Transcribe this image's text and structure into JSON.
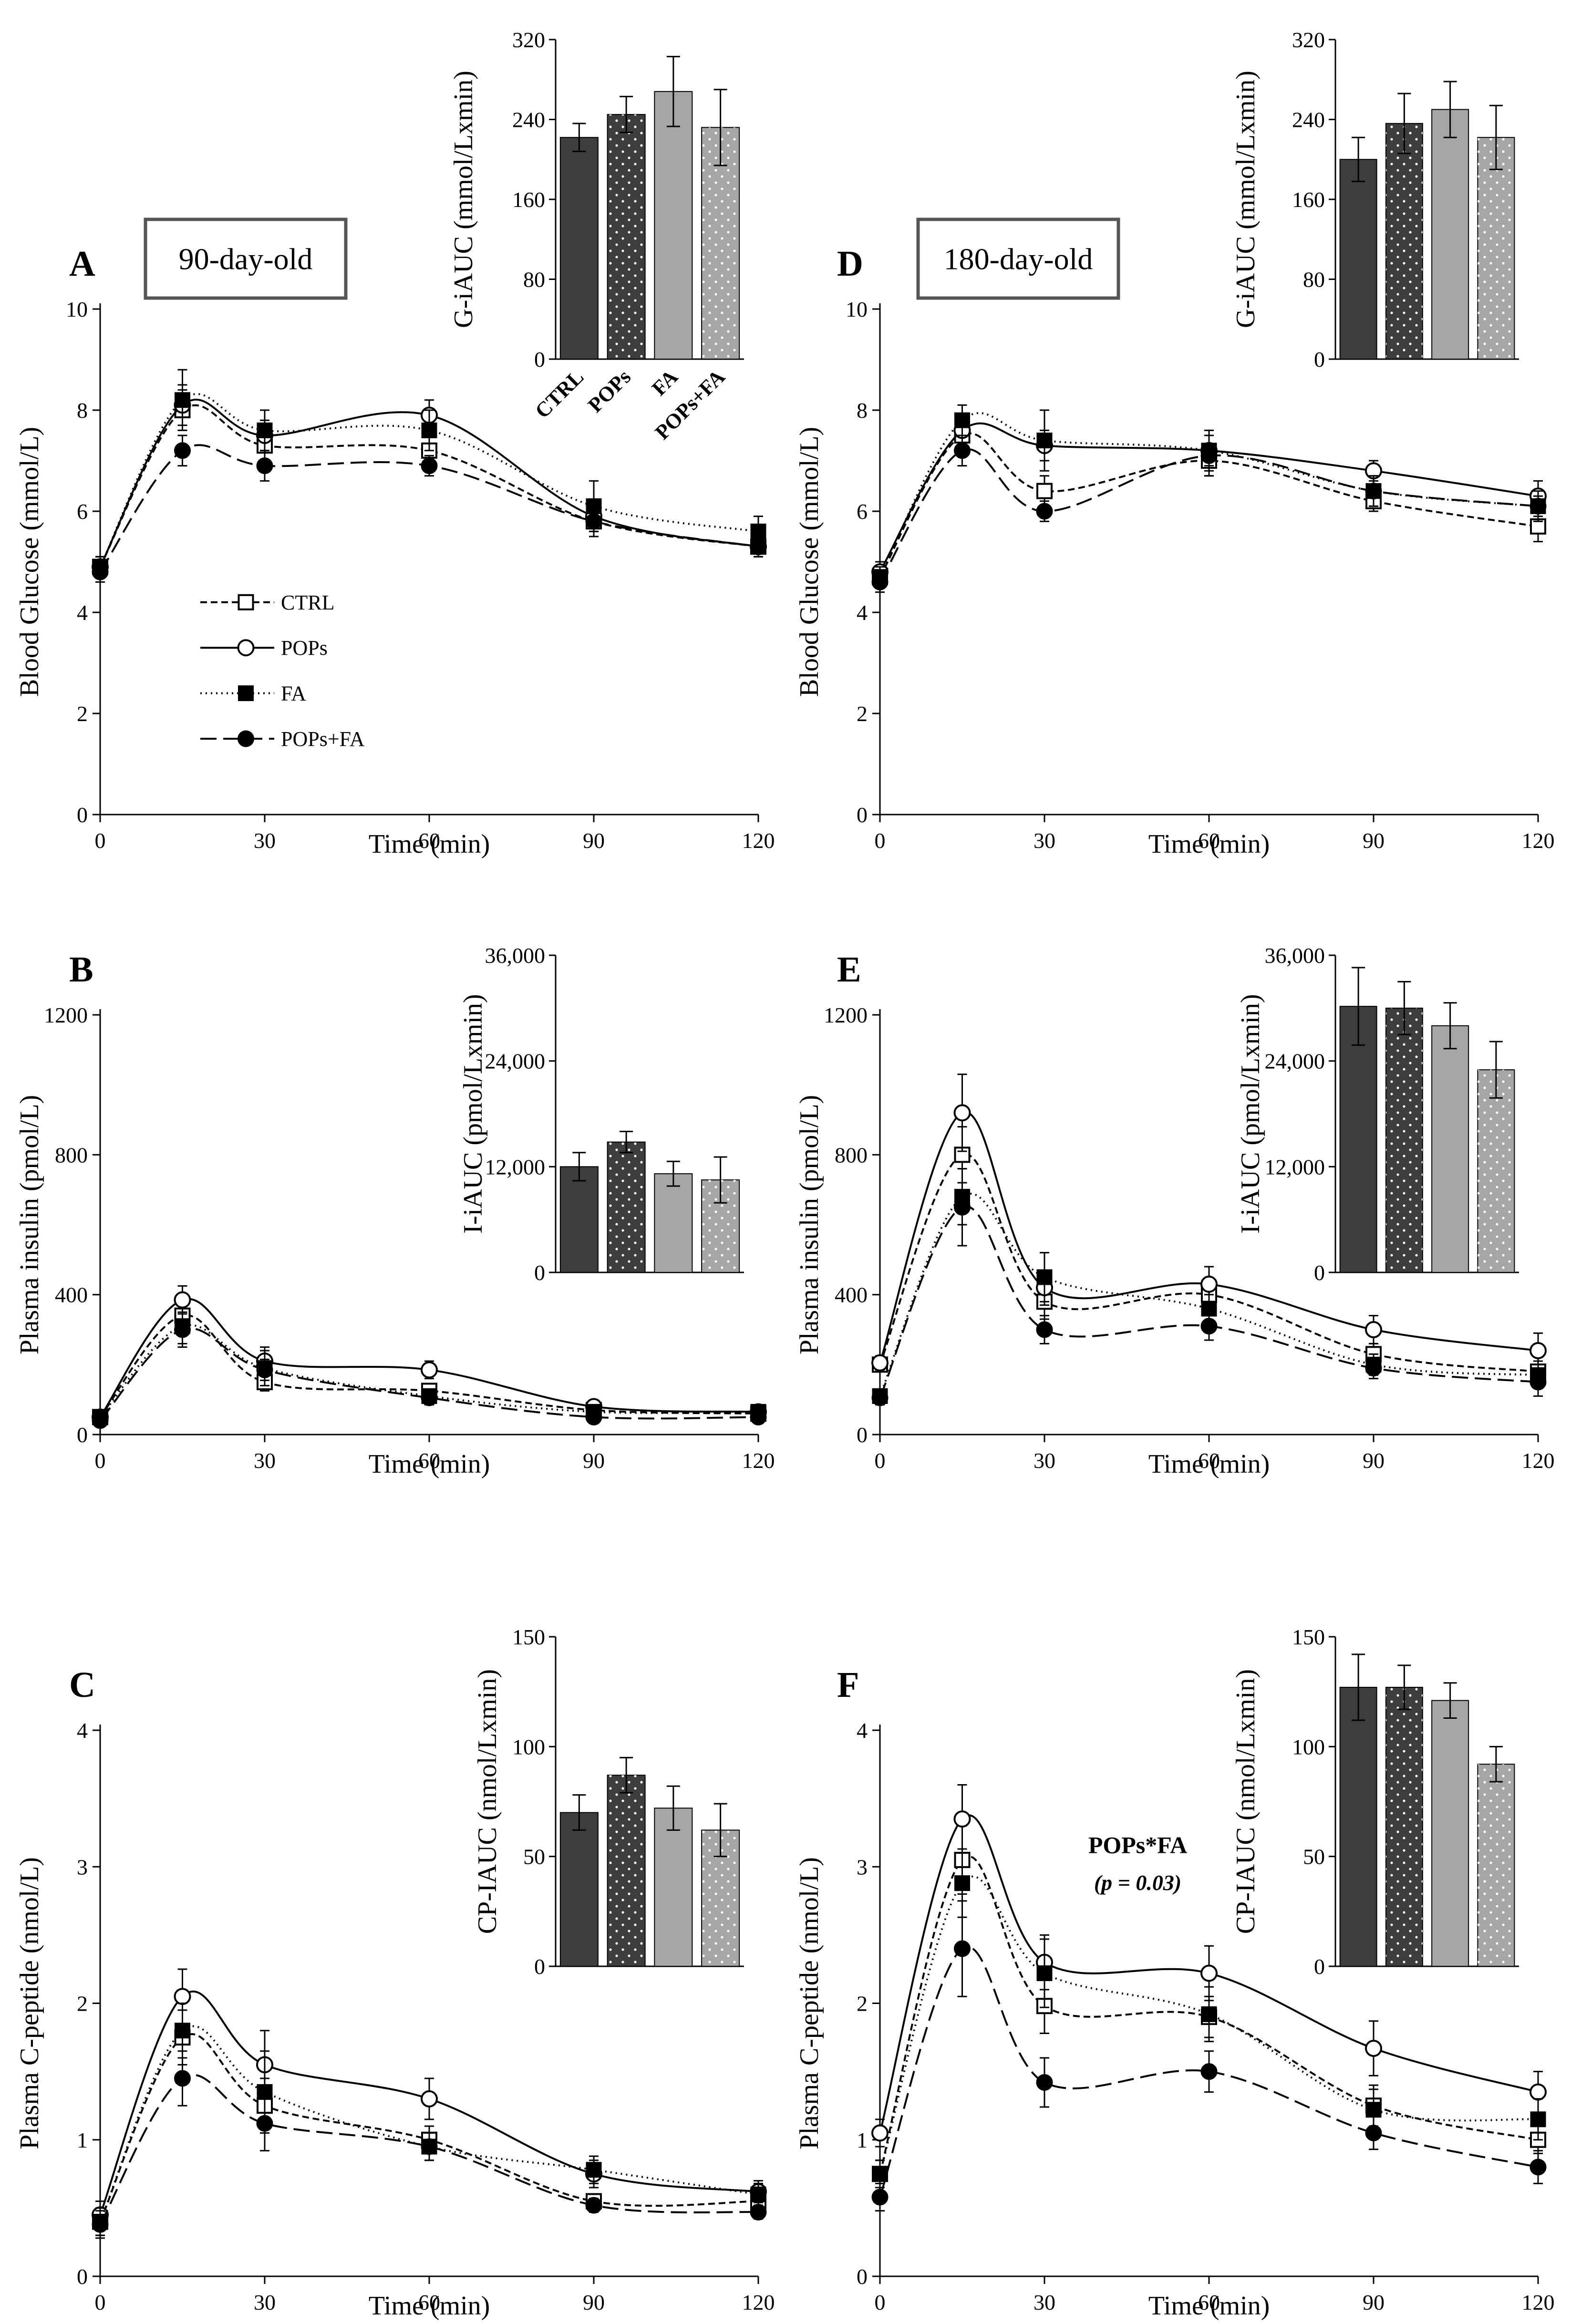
{
  "figure": {
    "age_labels": [
      "90-day-old",
      "180-day-old"
    ],
    "legend": [
      {
        "name": "CTRL",
        "style": "short-dash",
        "marker": "open-square"
      },
      {
        "name": "POPs",
        "style": "solid",
        "marker": "open-circle"
      },
      {
        "name": "FA",
        "style": "dotted",
        "marker": "filled-square"
      },
      {
        "name": "POPs+FA",
        "style": "long-dash",
        "marker": "filled-circle"
      }
    ],
    "bar_categories": [
      "CTRL",
      "POPs",
      "FA",
      "POPs+FA"
    ],
    "bar_colors": [
      "#3d3d3d",
      "#3d3d3d",
      "#a6a6a6",
      "#a6a6a6"
    ],
    "bar_dotted": [
      false,
      true,
      false,
      true
    ]
  },
  "chart_data": [
    {
      "panel": "A",
      "type": "line",
      "age": "90-day-old",
      "legend_shown": true,
      "xlabel": "Time (min)",
      "ylabel": "Blood Glucose (mmol/L)",
      "x": [
        0,
        15,
        30,
        60,
        90,
        120
      ],
      "xlim": [
        0,
        120
      ],
      "xticks": [
        0,
        30,
        60,
        90,
        120
      ],
      "ylim": [
        0,
        10
      ],
      "yticks": [
        0,
        2,
        4,
        6,
        8,
        10
      ],
      "ytick_labels": [
        "0",
        "2",
        "4",
        "6",
        "8",
        "10"
      ],
      "series": [
        {
          "name": "CTRL",
          "values": [
            4.9,
            8.0,
            7.3,
            7.2,
            5.8,
            5.3
          ],
          "errors": [
            0.2,
            0.4,
            0.3,
            0.3,
            0.3,
            0.2
          ]
        },
        {
          "name": "POPs",
          "values": [
            4.9,
            8.1,
            7.5,
            7.9,
            5.9,
            5.3
          ],
          "errors": [
            0.2,
            0.4,
            0.3,
            0.3,
            0.3,
            0.2
          ]
        },
        {
          "name": "FA",
          "values": [
            4.9,
            8.2,
            7.6,
            7.6,
            6.1,
            5.6
          ],
          "errors": [
            0.2,
            0.6,
            0.4,
            0.4,
            0.5,
            0.3
          ]
        },
        {
          "name": "POPs+FA",
          "values": [
            4.8,
            7.2,
            6.9,
            6.9,
            5.8,
            5.3
          ],
          "errors": [
            0.2,
            0.3,
            0.3,
            0.2,
            0.2,
            0.2
          ]
        }
      ],
      "inset": {
        "type": "bar",
        "ylabel": "G-iAUC (mmol/Lxmin)",
        "ylim": [
          0,
          320
        ],
        "yticks": [
          0,
          80,
          160,
          240,
          320
        ],
        "ytick_labels": [
          "0",
          "80",
          "160",
          "240",
          "320"
        ],
        "values": [
          222,
          245,
          268,
          232
        ],
        "errors": [
          14,
          18,
          35,
          38
        ],
        "show_categories": true
      }
    },
    {
      "panel": "B",
      "type": "line",
      "age": "90-day-old",
      "legend_shown": false,
      "xlabel": "Time (min)",
      "ylabel": "Plasma insulin (pmol/L)",
      "x": [
        0,
        15,
        30,
        60,
        90,
        120
      ],
      "xlim": [
        0,
        120
      ],
      "xticks": [
        0,
        30,
        60,
        90,
        120
      ],
      "ylim": [
        0,
        1200
      ],
      "yticks": [
        0,
        400,
        800,
        1200
      ],
      "ytick_labels": [
        "0",
        "400",
        "800",
        "1200"
      ],
      "series": [
        {
          "name": "CTRL",
          "values": [
            50,
            340,
            150,
            125,
            70,
            60
          ],
          "errors": [
            15,
            50,
            25,
            20,
            15,
            10
          ]
        },
        {
          "name": "POPs",
          "values": [
            50,
            385,
            210,
            185,
            80,
            65
          ],
          "errors": [
            15,
            40,
            40,
            25,
            15,
            15
          ]
        },
        {
          "name": "FA",
          "values": [
            50,
            310,
            190,
            110,
            65,
            65
          ],
          "errors": [
            15,
            50,
            50,
            20,
            15,
            15
          ]
        },
        {
          "name": "POPs+FA",
          "values": [
            40,
            300,
            185,
            105,
            50,
            50
          ],
          "errors": [
            15,
            50,
            30,
            20,
            10,
            10
          ]
        }
      ],
      "inset": {
        "type": "bar",
        "ylabel": "I-iAUC (pmol/Lxmin)",
        "ylim": [
          0,
          36000
        ],
        "yticks": [
          0,
          12000,
          24000,
          36000
        ],
        "ytick_labels": [
          "0",
          "12,000",
          "24,000",
          "36,000"
        ],
        "values": [
          12000,
          14800,
          11200,
          10500
        ],
        "errors": [
          1600,
          1200,
          1400,
          2600
        ],
        "show_categories": false
      }
    },
    {
      "panel": "C",
      "type": "line",
      "age": "90-day-old",
      "legend_shown": false,
      "xlabel": "Time (min)",
      "ylabel": "Plasma C-peptide (nmol/L)",
      "x": [
        0,
        15,
        30,
        60,
        90,
        120
      ],
      "xlim": [
        0,
        120
      ],
      "xticks": [
        0,
        30,
        60,
        90,
        120
      ],
      "ylim": [
        0,
        4
      ],
      "yticks": [
        0,
        1,
        2,
        3,
        4
      ],
      "ytick_labels": [
        "0",
        "1",
        "2",
        "3",
        "4"
      ],
      "series": [
        {
          "name": "CTRL",
          "values": [
            0.4,
            1.75,
            1.25,
            1.0,
            0.55,
            0.55
          ],
          "errors": [
            0.1,
            0.2,
            0.2,
            0.1,
            0.05,
            0.05
          ]
        },
        {
          "name": "POPs",
          "values": [
            0.45,
            2.05,
            1.55,
            1.3,
            0.75,
            0.62
          ],
          "errors": [
            0.1,
            0.2,
            0.25,
            0.15,
            0.1,
            0.08
          ]
        },
        {
          "name": "FA",
          "values": [
            0.4,
            1.8,
            1.35,
            0.95,
            0.78,
            0.6
          ],
          "errors": [
            0.1,
            0.2,
            0.3,
            0.1,
            0.1,
            0.08
          ]
        },
        {
          "name": "POPs+FA",
          "values": [
            0.38,
            1.45,
            1.12,
            0.95,
            0.52,
            0.47
          ],
          "errors": [
            0.1,
            0.2,
            0.2,
            0.1,
            0.05,
            0.05
          ]
        }
      ],
      "inset": {
        "type": "bar",
        "ylabel": "CP-IAUC (nmol/Lxmin)",
        "ylim": [
          0,
          150
        ],
        "yticks": [
          0,
          50,
          100,
          150
        ],
        "ytick_labels": [
          "0",
          "50",
          "100",
          "150"
        ],
        "values": [
          70,
          87,
          72,
          62
        ],
        "errors": [
          8,
          8,
          10,
          12
        ],
        "show_categories": false
      }
    },
    {
      "panel": "D",
      "type": "line",
      "age": "180-day-old",
      "legend_shown": false,
      "xlabel": "Time (min)",
      "ylabel": "Blood Glucose (mmol/L)",
      "x": [
        0,
        15,
        30,
        60,
        90,
        120
      ],
      "xlim": [
        0,
        120
      ],
      "xticks": [
        0,
        30,
        60,
        90,
        120
      ],
      "ylim": [
        0,
        10
      ],
      "yticks": [
        0,
        2,
        4,
        6,
        8,
        10
      ],
      "ytick_labels": [
        "0",
        "2",
        "4",
        "6",
        "8",
        "10"
      ],
      "series": [
        {
          "name": "CTRL",
          "values": [
            4.7,
            7.5,
            6.4,
            7.0,
            6.2,
            5.7
          ],
          "errors": [
            0.2,
            0.2,
            0.3,
            0.3,
            0.2,
            0.3
          ]
        },
        {
          "name": "POPs",
          "values": [
            4.8,
            7.6,
            7.3,
            7.2,
            6.8,
            6.3
          ],
          "errors": [
            0.2,
            0.3,
            0.3,
            0.3,
            0.2,
            0.3
          ]
        },
        {
          "name": "FA",
          "values": [
            4.7,
            7.8,
            7.4,
            7.2,
            6.4,
            6.1
          ],
          "errors": [
            0.2,
            0.3,
            0.6,
            0.4,
            0.3,
            0.3
          ]
        },
        {
          "name": "POPs+FA",
          "values": [
            4.6,
            7.2,
            6.0,
            7.1,
            6.4,
            6.1
          ],
          "errors": [
            0.2,
            0.3,
            0.2,
            0.4,
            0.3,
            0.2
          ]
        }
      ],
      "inset": {
        "type": "bar",
        "ylabel": "G-iAUC (mmol/Lxmin)",
        "ylim": [
          0,
          320
        ],
        "yticks": [
          0,
          80,
          160,
          240,
          320
        ],
        "ytick_labels": [
          "0",
          "80",
          "160",
          "240",
          "320"
        ],
        "values": [
          200,
          236,
          250,
          222
        ],
        "errors": [
          22,
          30,
          28,
          32
        ],
        "show_categories": false
      }
    },
    {
      "panel": "E",
      "type": "line",
      "age": "180-day-old",
      "legend_shown": false,
      "xlabel": "Time (min)",
      "ylabel": "Plasma insulin (pmol/L)",
      "x": [
        0,
        15,
        30,
        60,
        90,
        120
      ],
      "xlim": [
        0,
        120
      ],
      "xticks": [
        0,
        30,
        60,
        90,
        120
      ],
      "ylim": [
        0,
        1200
      ],
      "yticks": [
        0,
        400,
        800,
        1200
      ],
      "ytick_labels": [
        "0",
        "400",
        "800",
        "1200"
      ],
      "series": [
        {
          "name": "CTRL",
          "values": [
            200,
            800,
            380,
            400,
            230,
            180
          ],
          "errors": [
            20,
            80,
            50,
            40,
            30,
            30
          ]
        },
        {
          "name": "POPs",
          "values": [
            205,
            920,
            420,
            430,
            300,
            240
          ],
          "errors": [
            20,
            110,
            50,
            50,
            40,
            50
          ]
        },
        {
          "name": "FA",
          "values": [
            110,
            680,
            450,
            360,
            200,
            170
          ],
          "errors": [
            20,
            80,
            70,
            40,
            30,
            30
          ]
        },
        {
          "name": "POPs+FA",
          "values": [
            105,
            650,
            300,
            310,
            190,
            150
          ],
          "errors": [
            20,
            110,
            40,
            40,
            30,
            40
          ]
        }
      ],
      "inset": {
        "type": "bar",
        "ylabel": "I-iAUC (pmol/Lxmin)",
        "ylim": [
          0,
          36000
        ],
        "yticks": [
          0,
          12000,
          24000,
          36000
        ],
        "ytick_labels": [
          "0",
          "12,000",
          "24,000",
          "36,000"
        ],
        "values": [
          30200,
          30000,
          28000,
          23000
        ],
        "errors": [
          4400,
          3000,
          2600,
          3200
        ],
        "show_categories": false
      }
    },
    {
      "panel": "F",
      "type": "line",
      "age": "180-day-old",
      "legend_shown": false,
      "xlabel": "Time (min)",
      "ylabel": "Plasma C-peptide (nmol/L)",
      "x": [
        0,
        15,
        30,
        60,
        90,
        120
      ],
      "xlim": [
        0,
        120
      ],
      "xticks": [
        0,
        30,
        60,
        90,
        120
      ],
      "ylim": [
        0,
        4
      ],
      "yticks": [
        0,
        1,
        2,
        3,
        4
      ],
      "ytick_labels": [
        "0",
        "1",
        "2",
        "3",
        "4"
      ],
      "annotation": {
        "label": "POPs*FA",
        "p": "(p = 0.03)"
      },
      "series": [
        {
          "name": "CTRL",
          "values": [
            0.75,
            3.05,
            1.98,
            1.9,
            1.25,
            1.0
          ],
          "errors": [
            0.1,
            0.25,
            0.2,
            0.15,
            0.15,
            0.1
          ]
        },
        {
          "name": "POPs",
          "values": [
            1.05,
            3.35,
            2.3,
            2.22,
            1.67,
            1.35
          ],
          "errors": [
            0.1,
            0.25,
            0.2,
            0.2,
            0.2,
            0.15
          ]
        },
        {
          "name": "FA",
          "values": [
            0.75,
            2.88,
            2.22,
            1.92,
            1.22,
            1.15
          ],
          "errors": [
            0.1,
            0.25,
            0.25,
            0.2,
            0.15,
            0.15
          ]
        },
        {
          "name": "POPs+FA",
          "values": [
            0.58,
            2.4,
            1.42,
            1.5,
            1.05,
            0.8
          ],
          "errors": [
            0.1,
            0.35,
            0.18,
            0.15,
            0.12,
            0.12
          ]
        }
      ],
      "inset": {
        "type": "bar",
        "ylabel": "CP-IAUC (nmol/Lxmin)",
        "ylim": [
          0,
          150
        ],
        "yticks": [
          0,
          50,
          100,
          150
        ],
        "ytick_labels": [
          "0",
          "50",
          "100",
          "150"
        ],
        "values": [
          127,
          127,
          121,
          92
        ],
        "errors": [
          15,
          10,
          8,
          8
        ],
        "show_categories": false
      }
    }
  ]
}
